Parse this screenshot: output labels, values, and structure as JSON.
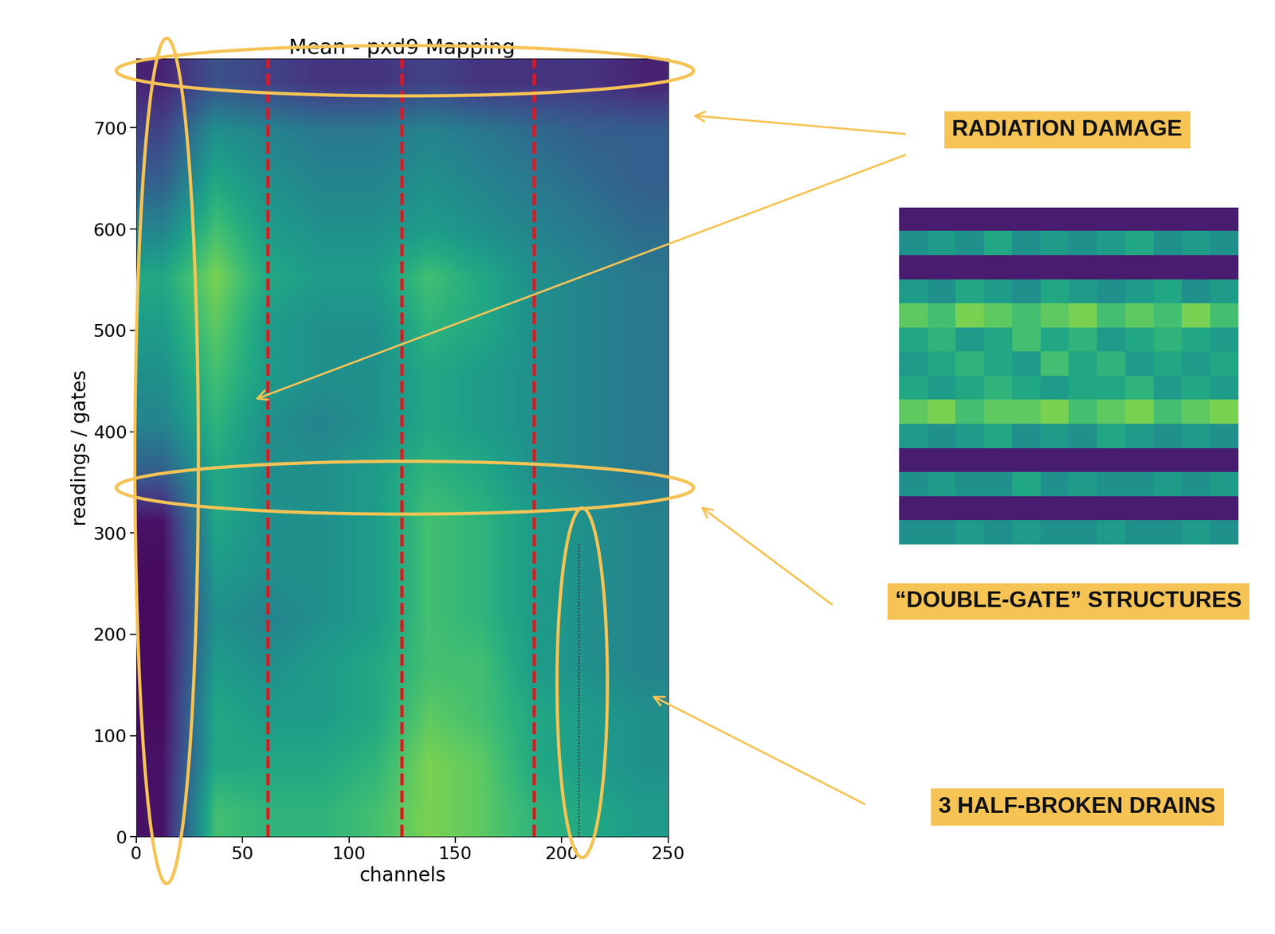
{
  "chart_data": {
    "type": "heatmap",
    "title": "Mean - pxd9 Mapping",
    "x_label": "channels",
    "y_label": "readings / gates",
    "xlim": [
      0,
      250
    ],
    "ylim": [
      0,
      768
    ],
    "xticks": [
      0,
      50,
      100,
      150,
      200,
      250
    ],
    "yticks": [
      0,
      100,
      200,
      300,
      400,
      500,
      600,
      700
    ],
    "color_range": [
      0,
      1
    ],
    "cells": [
      [
        0.05,
        0.7,
        0.65,
        0.65,
        0.7,
        0.8,
        0.75,
        0.65,
        0.6,
        0.55
      ],
      [
        0.05,
        0.6,
        0.6,
        0.6,
        0.65,
        0.8,
        0.75,
        0.6,
        0.55,
        0.5
      ],
      [
        0.03,
        0.6,
        0.55,
        0.55,
        0.6,
        0.75,
        0.7,
        0.6,
        0.55,
        0.5
      ],
      [
        0.03,
        0.55,
        0.5,
        0.55,
        0.6,
        0.7,
        0.7,
        0.55,
        0.5,
        0.45
      ],
      [
        0.03,
        0.5,
        0.45,
        0.5,
        0.55,
        0.7,
        0.65,
        0.55,
        0.5,
        0.45
      ],
      [
        0.03,
        0.55,
        0.5,
        0.5,
        0.55,
        0.7,
        0.65,
        0.55,
        0.5,
        0.45
      ],
      [
        0.05,
        0.6,
        0.5,
        0.5,
        0.55,
        0.7,
        0.65,
        0.55,
        0.5,
        0.45
      ],
      [
        0.3,
        0.6,
        0.5,
        0.5,
        0.55,
        0.65,
        0.6,
        0.5,
        0.45,
        0.4
      ],
      [
        0.45,
        0.65,
        0.5,
        0.45,
        0.5,
        0.6,
        0.55,
        0.5,
        0.45,
        0.4
      ],
      [
        0.5,
        0.7,
        0.55,
        0.5,
        0.5,
        0.6,
        0.55,
        0.5,
        0.45,
        0.4
      ],
      [
        0.55,
        0.75,
        0.55,
        0.5,
        0.5,
        0.65,
        0.6,
        0.5,
        0.45,
        0.4
      ],
      [
        0.6,
        0.8,
        0.6,
        0.55,
        0.55,
        0.7,
        0.6,
        0.5,
        0.45,
        0.4
      ],
      [
        0.45,
        0.7,
        0.55,
        0.5,
        0.5,
        0.55,
        0.5,
        0.45,
        0.4,
        0.35
      ],
      [
        0.3,
        0.6,
        0.5,
        0.45,
        0.45,
        0.5,
        0.45,
        0.4,
        0.35,
        0.3
      ],
      [
        0.2,
        0.5,
        0.45,
        0.4,
        0.4,
        0.45,
        0.4,
        0.35,
        0.3,
        0.3
      ],
      [
        0.1,
        0.25,
        0.2,
        0.15,
        0.15,
        0.2,
        0.15,
        0.15,
        0.15,
        0.1
      ]
    ],
    "vlines": {
      "x": [
        62,
        125,
        187
      ],
      "color": "#e8141c",
      "line_style": "dashed"
    },
    "drain_line": {
      "x": 208,
      "y": [
        0,
        290
      ],
      "color": "#222222",
      "line_style": "dotted"
    },
    "annotations": [
      {
        "text": "RADIATION DAMAGE"
      },
      {
        "text": "“DOUBLE-GATE” STRUCTURES"
      },
      {
        "text": "3 HALF-BROKEN DRAINS"
      }
    ],
    "inset": {
      "cells": [
        [
          0.08,
          0.08,
          0.08,
          0.08,
          0.08,
          0.08,
          0.08,
          0.08,
          0.08,
          0.08,
          0.08,
          0.08
        ],
        [
          0.5,
          0.55,
          0.5,
          0.6,
          0.5,
          0.55,
          0.5,
          0.55,
          0.6,
          0.5,
          0.55,
          0.5
        ],
        [
          0.08,
          0.08,
          0.08,
          0.08,
          0.08,
          0.08,
          0.08,
          0.08,
          0.08,
          0.08,
          0.08,
          0.08
        ],
        [
          0.55,
          0.5,
          0.6,
          0.55,
          0.5,
          0.6,
          0.55,
          0.5,
          0.55,
          0.6,
          0.5,
          0.55
        ],
        [
          0.75,
          0.7,
          0.8,
          0.75,
          0.7,
          0.75,
          0.8,
          0.7,
          0.75,
          0.7,
          0.8,
          0.7
        ],
        [
          0.6,
          0.65,
          0.55,
          0.6,
          0.7,
          0.6,
          0.65,
          0.55,
          0.6,
          0.65,
          0.6,
          0.55
        ],
        [
          0.55,
          0.6,
          0.65,
          0.6,
          0.55,
          0.7,
          0.6,
          0.65,
          0.55,
          0.6,
          0.55,
          0.6
        ],
        [
          0.6,
          0.55,
          0.6,
          0.65,
          0.6,
          0.55,
          0.6,
          0.6,
          0.65,
          0.55,
          0.6,
          0.55
        ],
        [
          0.75,
          0.8,
          0.7,
          0.75,
          0.75,
          0.8,
          0.7,
          0.75,
          0.8,
          0.7,
          0.75,
          0.8
        ],
        [
          0.55,
          0.5,
          0.55,
          0.6,
          0.5,
          0.55,
          0.5,
          0.6,
          0.55,
          0.5,
          0.55,
          0.5
        ],
        [
          0.08,
          0.08,
          0.08,
          0.08,
          0.08,
          0.08,
          0.08,
          0.08,
          0.08,
          0.08,
          0.08,
          0.08
        ],
        [
          0.5,
          0.55,
          0.5,
          0.5,
          0.6,
          0.5,
          0.55,
          0.5,
          0.5,
          0.55,
          0.5,
          0.55
        ],
        [
          0.08,
          0.08,
          0.08,
          0.08,
          0.08,
          0.08,
          0.08,
          0.08,
          0.08,
          0.08,
          0.08,
          0.08
        ],
        [
          0.5,
          0.5,
          0.55,
          0.5,
          0.55,
          0.5,
          0.5,
          0.55,
          0.5,
          0.5,
          0.55,
          0.5
        ]
      ]
    }
  }
}
